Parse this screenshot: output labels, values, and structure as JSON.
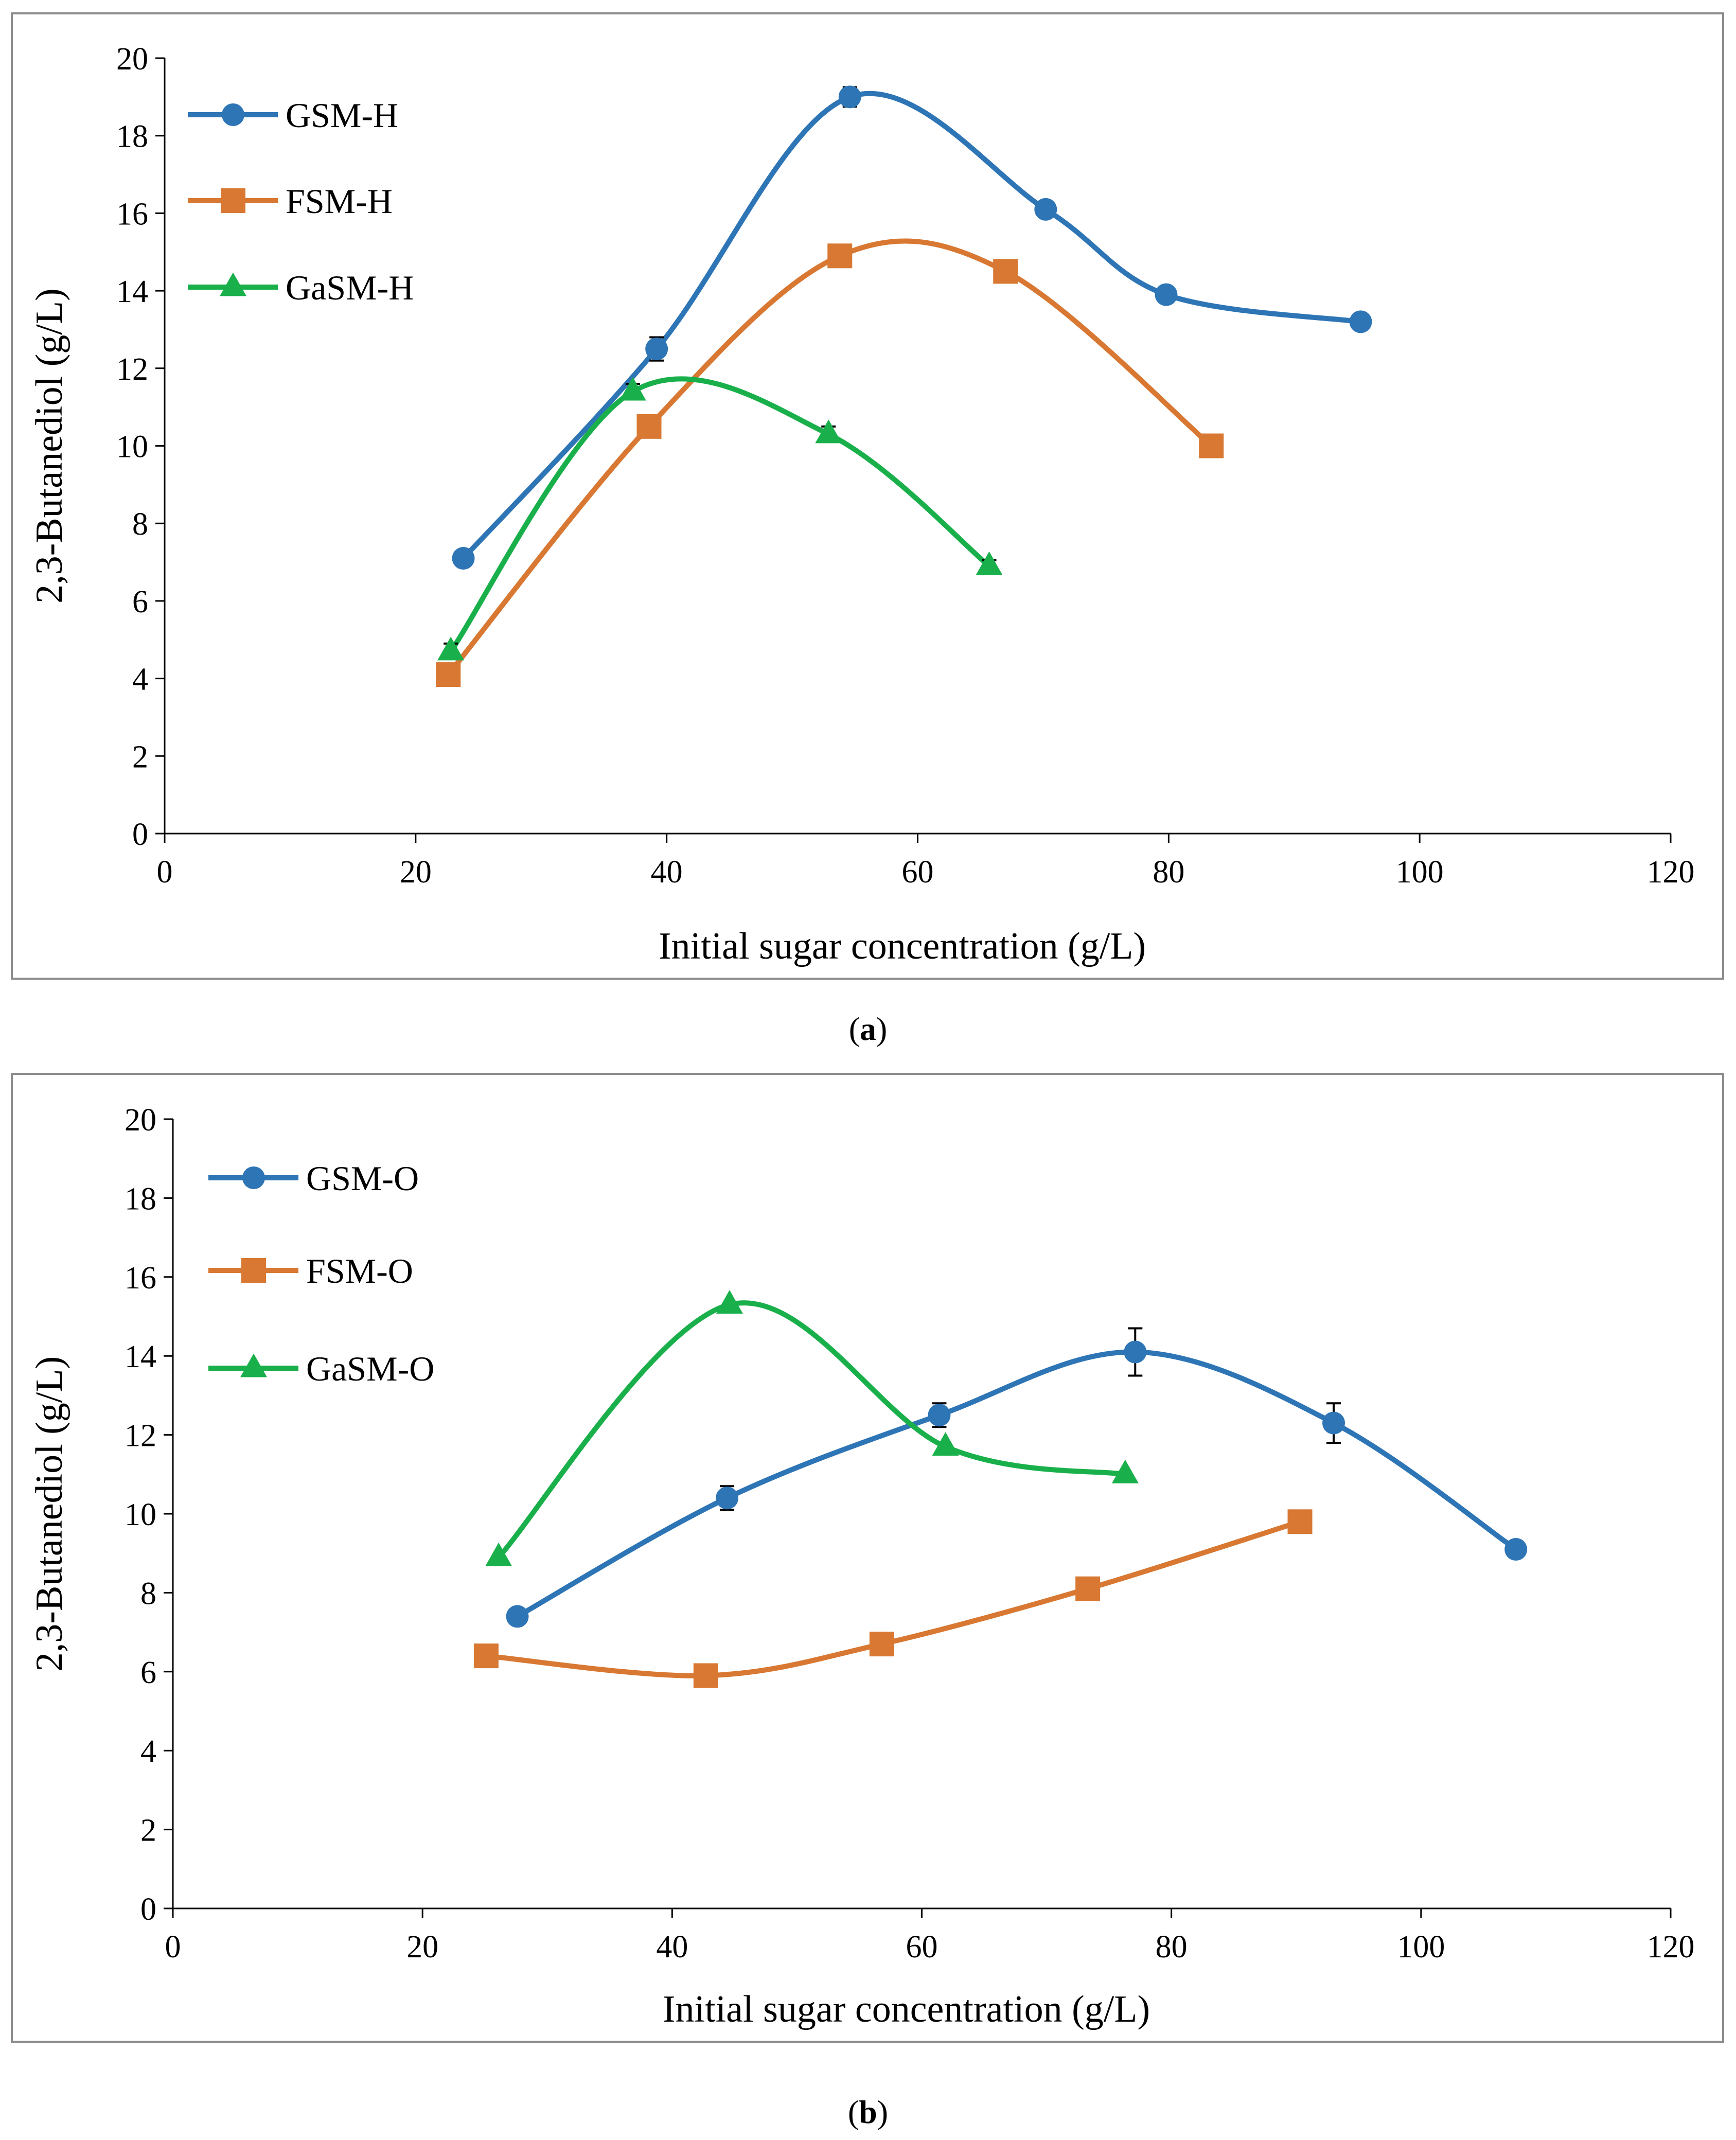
{
  "chart_data": [
    {
      "panel": "a",
      "caption_open": "(",
      "caption_letter": "a",
      "caption_close": ")",
      "type": "line",
      "xlabel": "Initial sugar concentration (g/L)",
      "ylabel": "2,3-Butanediol (g/L)",
      "xlim": [
        0,
        120
      ],
      "ylim": [
        0,
        20
      ],
      "xticks": [
        0,
        20,
        40,
        60,
        80,
        100,
        120
      ],
      "yticks": [
        0,
        2,
        4,
        6,
        8,
        10,
        12,
        14,
        16,
        18,
        20
      ],
      "grid": false,
      "legend_position": "top-left",
      "series": [
        {
          "name": "GSM-H",
          "marker": "circle",
          "color": "#2e75b6",
          "smooth": true,
          "x": [
            23.8,
            39.2,
            54.6,
            70.2,
            79.8,
            95.3
          ],
          "y": [
            7.1,
            12.5,
            19.0,
            16.1,
            13.9,
            13.2
          ],
          "err": [
            0,
            0.3,
            0.25,
            0.2,
            0.2,
            0.2
          ]
        },
        {
          "name": "FSM-H",
          "marker": "square",
          "color": "#d87832",
          "smooth": true,
          "x": [
            22.6,
            38.6,
            53.8,
            67.0,
            83.4
          ],
          "y": [
            4.1,
            10.5,
            14.9,
            14.5,
            10.0
          ],
          "err": [
            0,
            0,
            0,
            0,
            0
          ]
        },
        {
          "name": "GaSM-H",
          "marker": "triangle",
          "color": "#19b04b",
          "smooth": true,
          "x": [
            22.8,
            37.3,
            52.9,
            65.7
          ],
          "y": [
            4.7,
            11.4,
            10.3,
            6.9
          ],
          "err": [
            0.2,
            0.2,
            0.2,
            0.15
          ]
        }
      ]
    },
    {
      "panel": "b",
      "caption_open": "(",
      "caption_letter": "b",
      "caption_close": ")",
      "type": "line",
      "xlabel": "Initial sugar concentration (g/L)",
      "ylabel": "2,3-Butanediol (g/L)",
      "xlim": [
        0,
        120
      ],
      "ylim": [
        0,
        20
      ],
      "xticks": [
        0,
        20,
        40,
        60,
        80,
        100,
        120
      ],
      "yticks": [
        0,
        2,
        4,
        6,
        8,
        10,
        12,
        14,
        16,
        18,
        20
      ],
      "grid": false,
      "legend_position": "top-left",
      "series": [
        {
          "name": "GSM-O",
          "marker": "circle",
          "color": "#2e75b6",
          "smooth": true,
          "x": [
            27.6,
            44.4,
            61.4,
            77.1,
            93.0,
            107.6
          ],
          "y": [
            7.4,
            10.4,
            12.5,
            14.1,
            12.3,
            9.1
          ],
          "err": [
            0,
            0.3,
            0.3,
            0.6,
            0.5,
            0.2
          ]
        },
        {
          "name": "FSM-O",
          "marker": "square",
          "color": "#d87832",
          "smooth": true,
          "x": [
            25.1,
            42.7,
            56.8,
            73.3,
            90.3
          ],
          "y": [
            6.4,
            5.9,
            6.7,
            8.1,
            9.8
          ],
          "err": [
            0,
            0,
            0,
            0,
            0
          ]
        },
        {
          "name": "GaSM-O",
          "marker": "triangle",
          "color": "#19b04b",
          "smooth": true,
          "x": [
            26.1,
            44.6,
            61.9,
            76.3
          ],
          "y": [
            8.9,
            15.3,
            11.7,
            11.0
          ],
          "err": [
            0,
            0,
            0,
            0
          ]
        }
      ]
    }
  ]
}
